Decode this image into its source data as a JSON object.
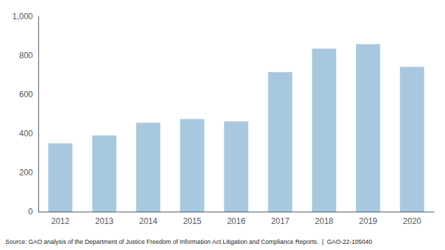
{
  "chart_data": {
    "type": "bar",
    "categories": [
      "2012",
      "2013",
      "2014",
      "2015",
      "2016",
      "2017",
      "2018",
      "2019",
      "2020"
    ],
    "values": [
      350,
      390,
      455,
      475,
      462,
      715,
      835,
      858,
      742
    ],
    "color": "#a8c8e0",
    "ylim": [
      0,
      1000
    ],
    "yticks": [
      0,
      200,
      400,
      600,
      800,
      {
        "value": 1000,
        "label": "1,000"
      }
    ],
    "grid": false,
    "annotation": "Source: GAO analysis of the Department of Justice Freedom of Information Act Litigation and Compliance Reports.  |  GAO-22-105040"
  }
}
